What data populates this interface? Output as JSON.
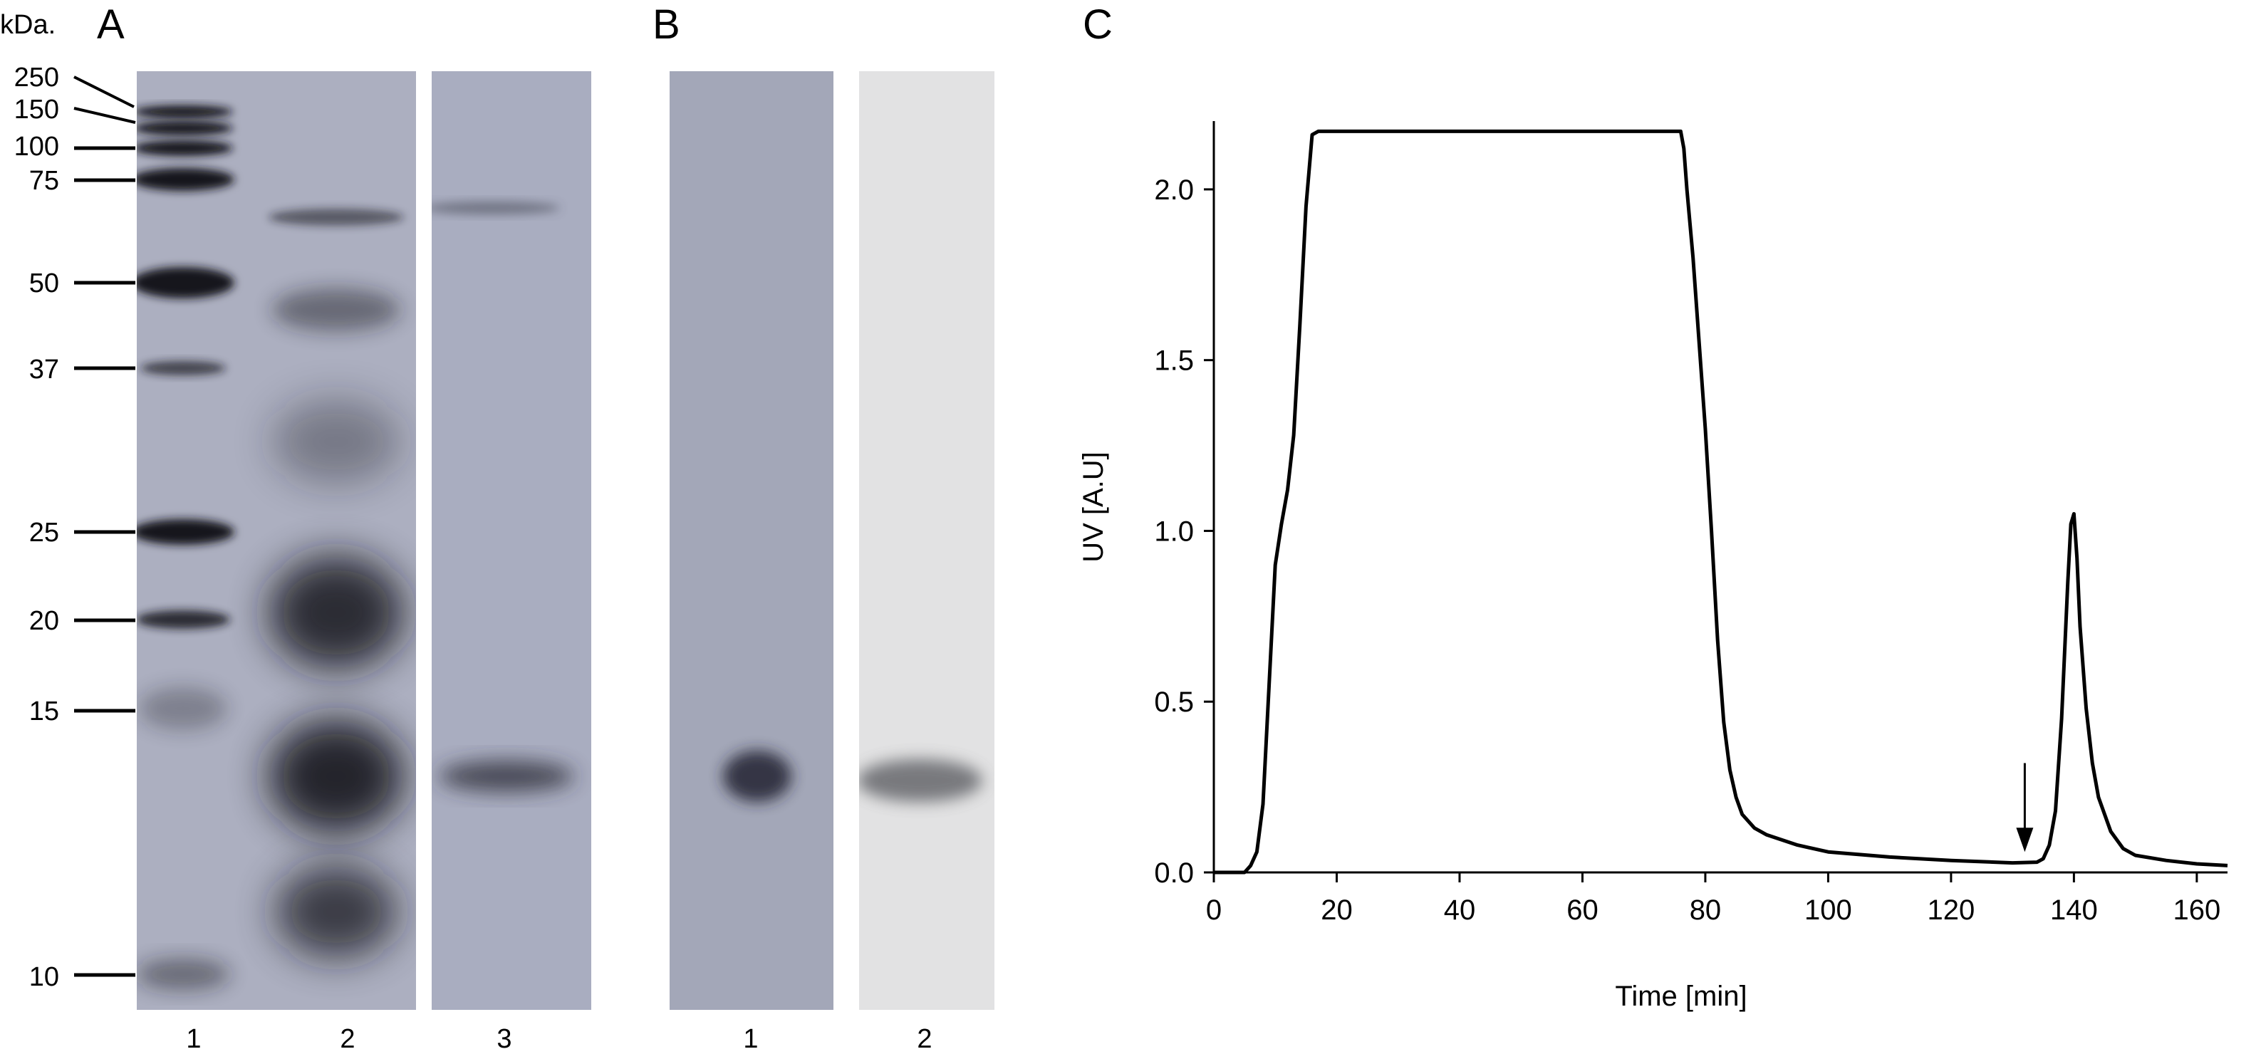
{
  "panels": {
    "a": "A",
    "b": "B",
    "c": "C"
  },
  "panel_a": {
    "unit_label": "kDa.",
    "markers": [
      "250",
      "150",
      "100",
      "75",
      "50",
      "37",
      "25",
      "20",
      "15",
      "10"
    ],
    "lanes": [
      "1",
      "2",
      "3"
    ]
  },
  "panel_b": {
    "lanes": [
      "1",
      "2"
    ]
  },
  "chart_data": {
    "type": "line",
    "title": "",
    "xlabel": "Time [min]",
    "ylabel": "UV [A.U]",
    "xlim": [
      0,
      165
    ],
    "ylim": [
      0,
      2.2
    ],
    "xticks": [
      "0",
      "20",
      "40",
      "60",
      "80",
      "100",
      "120",
      "140",
      "160"
    ],
    "yticks": [
      "0.0",
      "0.5",
      "1.0",
      "1.5",
      "2.0"
    ],
    "grid": false,
    "series": [
      {
        "name": "",
        "x": [
          0,
          5,
          6,
          7,
          8,
          9,
          10,
          11,
          12,
          13,
          14,
          15,
          16,
          17,
          20,
          40,
          60,
          76,
          76.5,
          77,
          78,
          79,
          80,
          81,
          82,
          83,
          84,
          85,
          86,
          88,
          90,
          95,
          100,
          110,
          120,
          130,
          134,
          135,
          136,
          137,
          138,
          139,
          139.5,
          140,
          140.5,
          141,
          142,
          143,
          144,
          146,
          148,
          150,
          155,
          160,
          165
        ],
        "y": [
          0,
          0,
          0.02,
          0.06,
          0.2,
          0.55,
          0.9,
          1.02,
          1.12,
          1.28,
          1.6,
          1.95,
          2.16,
          2.17,
          2.17,
          2.17,
          2.17,
          2.17,
          2.12,
          2.0,
          1.8,
          1.55,
          1.3,
          1.0,
          0.68,
          0.44,
          0.3,
          0.22,
          0.17,
          0.13,
          0.11,
          0.08,
          0.06,
          0.045,
          0.035,
          0.028,
          0.03,
          0.04,
          0.08,
          0.18,
          0.45,
          0.85,
          1.02,
          1.05,
          0.92,
          0.72,
          0.48,
          0.32,
          0.22,
          0.12,
          0.07,
          0.05,
          0.035,
          0.025,
          0.02
        ]
      }
    ],
    "annotations": [
      {
        "type": "arrow",
        "x": 132,
        "y_top": 0.32,
        "y_bottom": 0.06
      }
    ]
  }
}
